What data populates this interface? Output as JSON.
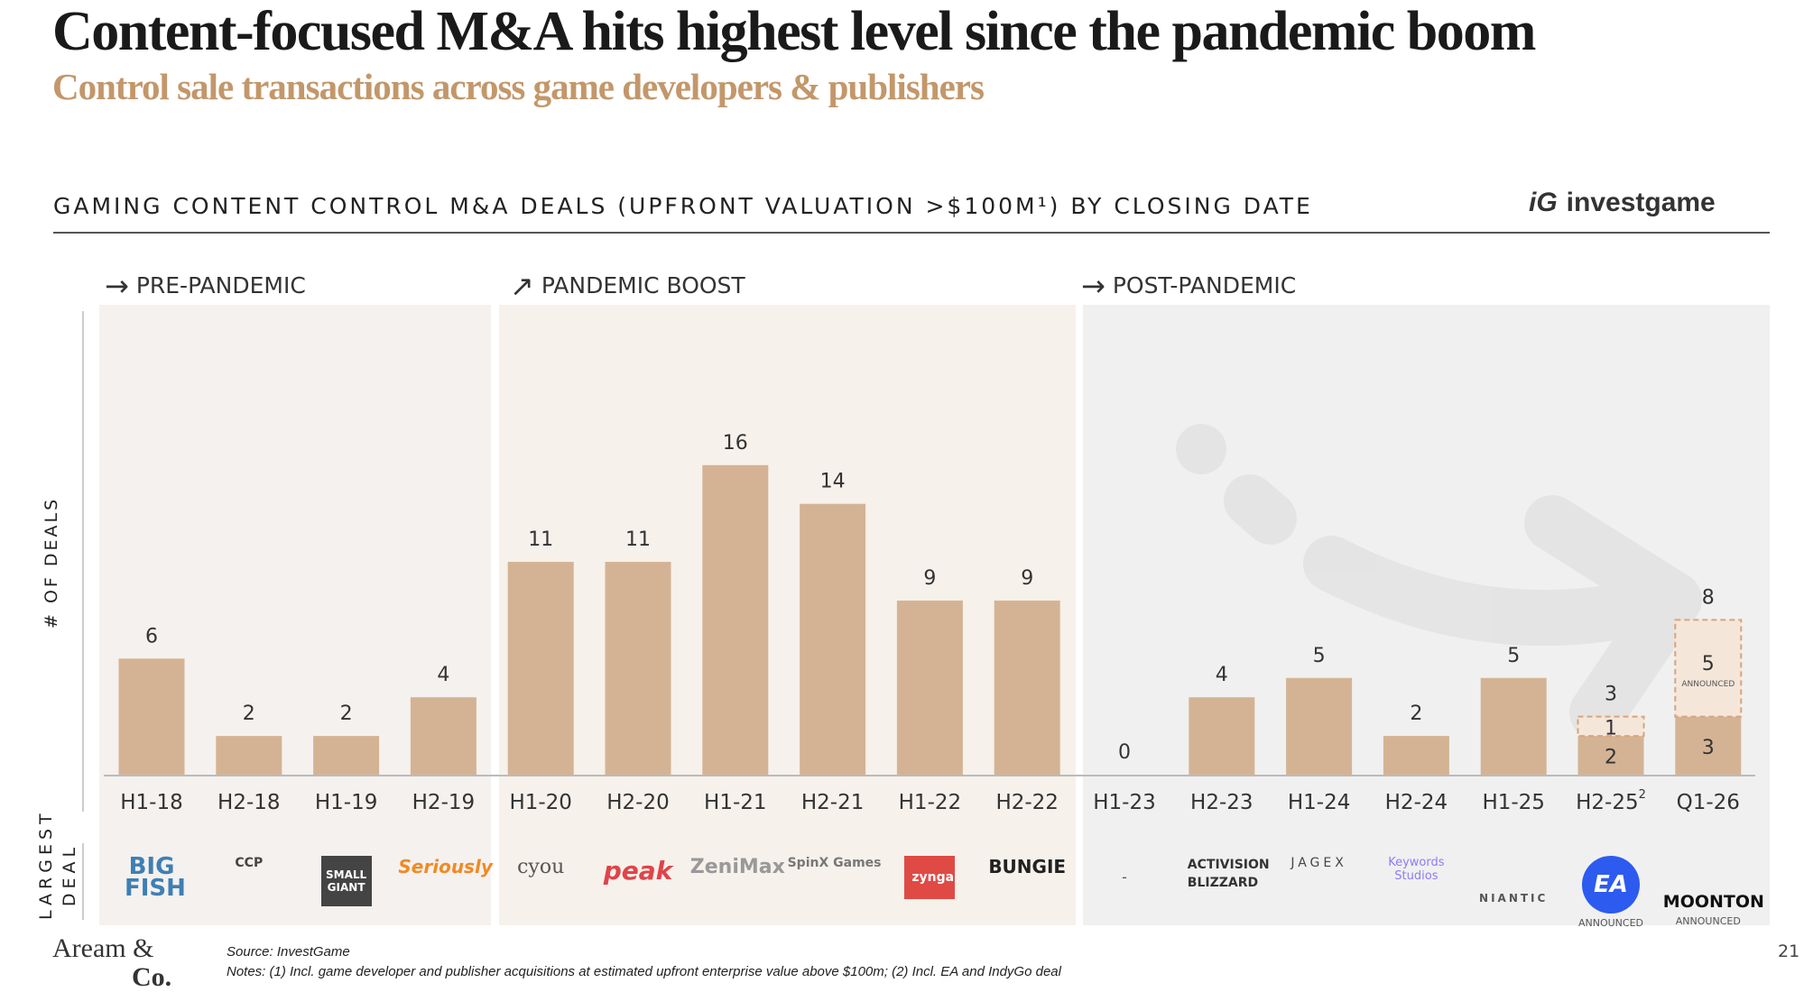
{
  "title": "Content-focused M&A hits highest level since the pandemic boom",
  "subtitle": "Control sale transactions across game developers & publishers",
  "section_header": "GAMING CONTENT CONTROL M&A DEALS (UPFRONT VALUATION >$100M¹) BY CLOSING DATE",
  "brand": "investgame",
  "phases": [
    {
      "label": "PRE-PANDEMIC",
      "icon": "arrow-right-icon"
    },
    {
      "label": "PANDEMIC BOOST",
      "icon": "arrow-up-right-icon"
    },
    {
      "label": "POST-PANDEMIC",
      "icon": "arrow-right-icon"
    }
  ],
  "ylabel": "# OF DEALS",
  "largest_deal_label": "LARGEST DEAL",
  "chart_data": {
    "type": "bar",
    "stacked": true,
    "categories": [
      "H1-18",
      "H2-18",
      "H1-19",
      "H2-19",
      "H1-20",
      "H2-20",
      "H1-21",
      "H2-21",
      "H1-22",
      "H2-22",
      "H1-23",
      "H2-23",
      "H1-24",
      "H2-24",
      "H1-25",
      "H2-25²",
      "Q1-26"
    ],
    "series": [
      {
        "name": "",
        "values": [
          6,
          2,
          2,
          4,
          11,
          11,
          16,
          14,
          9,
          9,
          0,
          4,
          5,
          2,
          5,
          2,
          3
        ]
      },
      {
        "name": "ANNOUNCED",
        "values": [
          0,
          0,
          0,
          0,
          0,
          0,
          0,
          0,
          0,
          0,
          0,
          0,
          0,
          0,
          0,
          1,
          5
        ]
      }
    ],
    "totals": [
      6,
      2,
      2,
      4,
      11,
      11,
      16,
      14,
      9,
      9,
      0,
      4,
      5,
      2,
      5,
      3,
      8
    ],
    "ylim": [
      0,
      16
    ],
    "colors": {
      "completed": "#d4b394",
      "announced": "#f5e6da",
      "pre_panel": "#f4f1ef",
      "pandemic_panel": "#f6f1ea",
      "post_panel": "#f0f0f0"
    }
  },
  "logos": [
    "BIG FISH",
    "CCP",
    "SMALL GIANT",
    "Seriously",
    "cyou",
    "peak",
    "ZeniMax",
    "SpinX Games",
    "zynga",
    "BUNGIE",
    "-",
    "ACTIVISION BLIZZARD",
    "JAGEX",
    "Keywords Studios",
    "NIANTIC",
    "EA",
    "MOONTON"
  ],
  "logo_notes": {
    "EA": "ANNOUNCED",
    "MOONTON": "ANNOUNCED"
  },
  "footer": {
    "brand_line1": "Aream &",
    "brand_line2": "Co.",
    "source": "Source: InvestGame",
    "notes": "Notes: (1) Incl. game developer and publisher acquisitions at estimated upfront enterprise value above $100m; (2) Incl. EA and IndyGo deal",
    "page": "21"
  }
}
